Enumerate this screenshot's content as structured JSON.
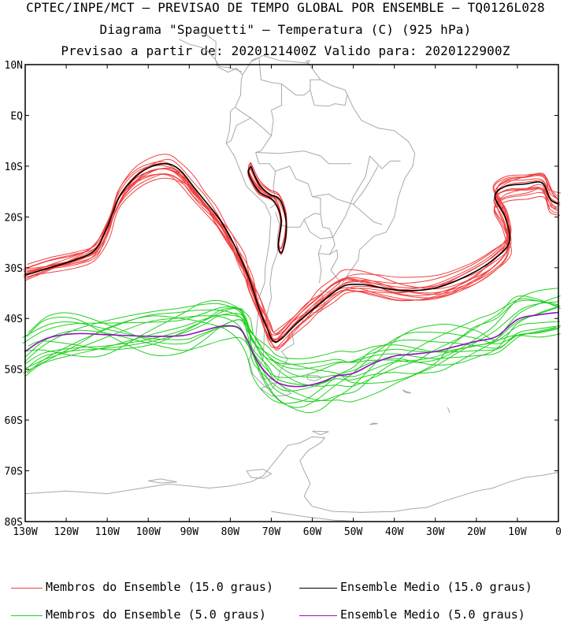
{
  "header": {
    "line1": "CPTEC/INPE/MCT – PREVISAO DE TEMPO GLOBAL POR ENSEMBLE – TQ0126L028",
    "line2": "Diagrama \"Spaguetti\" – Temperatura (C) (925 hPa)",
    "line3": "Previsao a partir de: 2020121400Z  Valido para: 2020122900Z"
  },
  "map": {
    "lat_labels": [
      "10N",
      "EQ",
      "10S",
      "20S",
      "30S",
      "40S",
      "50S",
      "60S",
      "70S",
      "80S"
    ],
    "lon_labels": [
      "130W",
      "120W",
      "110W",
      "100W",
      "90W",
      "80W",
      "70W",
      "60W",
      "50W",
      "40W",
      "30W",
      "20W",
      "10W",
      "0"
    ],
    "lat_range": [
      -80,
      10
    ],
    "lon_range": [
      -130,
      0
    ],
    "colors": {
      "member15": "#f04040",
      "mean15": "#000000",
      "member5": "#20d020",
      "mean5": "#9010c0",
      "coast": "#a8a8a8"
    }
  },
  "legend": {
    "member15": "Membros do Ensemble (15.0 graus)",
    "mean15": "Ensemble Medio (15.0 graus)",
    "member5": "Membros do Ensemble (5.0 graus)",
    "mean5": "Ensemble Medio (5.0 graus)"
  }
}
